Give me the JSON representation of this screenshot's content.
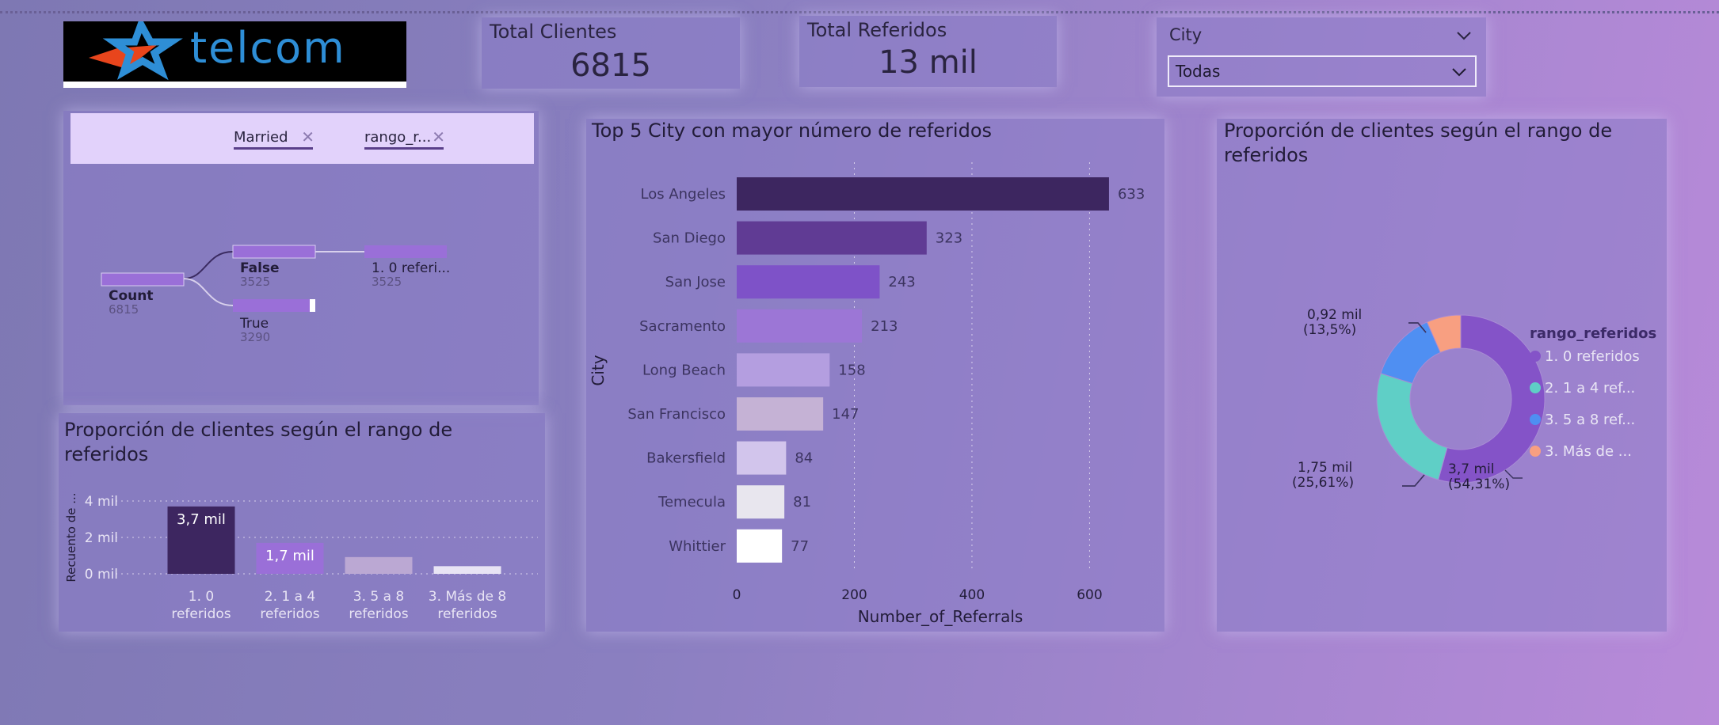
{
  "logo": {
    "text": "telcom"
  },
  "kpis": [
    {
      "label": "Total Clientes",
      "value": "6815"
    },
    {
      "label": "Total Referidos",
      "value": "13 mil"
    }
  ],
  "slicer": {
    "label": "City",
    "value": "Todas"
  },
  "decomp": {
    "chips": [
      "Married",
      "rango_r..."
    ],
    "root": {
      "label": "Count",
      "value": "6815"
    },
    "level1": [
      {
        "label": "False",
        "value": "3525"
      },
      {
        "label": "True",
        "value": "3290"
      }
    ],
    "level2": [
      {
        "label": "1. 0 referi...",
        "value": "3525"
      }
    ]
  },
  "colors": {
    "bar_dark": "#3d2660",
    "donut_0": "#8453c8",
    "donut_1": "#5fcfc6",
    "donut_2": "#4f8ff2",
    "donut_3": "#f89f81"
  },
  "chart_data": [
    {
      "type": "bar",
      "orientation": "vertical",
      "title": "Proporción de clientes según el rango de referidos",
      "ylabel": "Recuento de ...",
      "ylim": [
        0,
        4
      ],
      "yticks": [
        "0 mil",
        "2 mil",
        "4 mil"
      ],
      "categories": [
        "1. 0 referidos",
        "2. 1 a 4 referidos",
        "3. 5 a 8 referidos",
        "3. Más de 8 referidos"
      ],
      "values": [
        3.7,
        1.7,
        0.92,
        0.42
      ],
      "data_labels": [
        "3,7 mil",
        "1,7 mil",
        "",
        ""
      ],
      "colors": [
        "#3d2660",
        "#9a6fd8",
        "#bba8d3",
        "#e8e4f4"
      ]
    },
    {
      "type": "bar",
      "orientation": "horizontal",
      "title": "Top 5 City con mayor número de referidos",
      "xlabel": "Number_of_Referrals",
      "ylabel": "City",
      "xlim": [
        0,
        700
      ],
      "xticks": [
        0,
        200,
        400,
        600
      ],
      "categories": [
        "Los Angeles",
        "San Diego",
        "San Jose",
        "Sacramento",
        "Long Beach",
        "San Francisco",
        "Bakersfield",
        "Temecula",
        "Whittier"
      ],
      "values": [
        633,
        323,
        243,
        213,
        158,
        147,
        84,
        81,
        77
      ],
      "colors": [
        "#3d2660",
        "#603b94",
        "#7e52c8",
        "#9c76d6",
        "#b49ee0",
        "#c5b2d5",
        "#d2c5ec",
        "#e8e6ee",
        "#ffffff"
      ]
    },
    {
      "type": "pie",
      "donut": true,
      "title": "Proporción de clientes según el rango de referidos",
      "legend_title": "rango_referidos",
      "legend_position": "right",
      "legend": [
        "1. 0 referidos",
        "2. 1 a 4 ref...",
        "3. 5 a 8 ref...",
        "3. Más de ..."
      ],
      "values": [
        54.31,
        25.61,
        13.5,
        6.58
      ],
      "labels": [
        {
          "value": "3,7 mil",
          "pct": "(54,31%)"
        },
        {
          "value": "1,75 mil",
          "pct": "(25,61%)"
        },
        {
          "value": "0,92 mil",
          "pct": "(13,5%)"
        },
        {
          "value": "",
          "pct": ""
        }
      ]
    }
  ]
}
